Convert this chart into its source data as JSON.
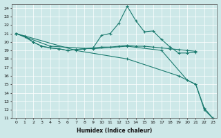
{
  "xlabel": "Humidex (Indice chaleur)",
  "ylabel": "",
  "background_color": "#cde8e8",
  "grid_color": "#ffffff",
  "line_color": "#1a7a6e",
  "xlim": [
    -0.5,
    23.5
  ],
  "ylim": [
    11,
    24.5
  ],
  "yticks": [
    11,
    12,
    13,
    14,
    15,
    16,
    17,
    18,
    19,
    20,
    21,
    22,
    23,
    24
  ],
  "xticks": [
    0,
    1,
    2,
    3,
    4,
    5,
    6,
    7,
    8,
    9,
    10,
    11,
    12,
    13,
    14,
    15,
    16,
    17,
    18,
    19,
    20,
    21,
    22,
    23
  ],
  "series": [
    {
      "x": [
        0,
        1,
        2,
        3,
        4,
        5,
        6,
        7,
        8,
        9,
        10,
        11,
        12,
        13,
        14,
        15,
        16,
        17,
        18,
        19,
        20,
        21
      ],
      "y": [
        21.0,
        20.7,
        20.0,
        19.5,
        19.3,
        19.2,
        19.0,
        19.1,
        19.2,
        19.3,
        20.8,
        21.0,
        22.2,
        24.2,
        22.5,
        21.2,
        21.3,
        20.3,
        19.4,
        18.7,
        18.7,
        18.8
      ],
      "marker": "+",
      "markersize": 2.5,
      "linestyle": "-",
      "linewidth": 0.8
    },
    {
      "x": [
        0,
        1,
        2,
        3,
        4,
        5,
        6,
        7,
        8,
        9,
        10,
        11,
        12,
        13,
        14,
        15,
        16,
        17,
        18,
        19,
        20,
        21
      ],
      "y": [
        21.0,
        20.6,
        20.0,
        19.5,
        19.3,
        19.2,
        19.0,
        19.1,
        19.2,
        19.3,
        19.4,
        19.4,
        19.5,
        19.6,
        19.5,
        19.5,
        19.4,
        19.3,
        19.2,
        19.1,
        19.0,
        18.9
      ],
      "marker": "+",
      "markersize": 2.5,
      "linestyle": "-",
      "linewidth": 0.8
    },
    {
      "x": [
        0,
        4,
        9,
        13,
        17,
        20,
        21,
        22,
        23
      ],
      "y": [
        21.0,
        19.5,
        19.2,
        19.5,
        19.0,
        15.5,
        15.0,
        12.2,
        11.0
      ],
      "marker": "+",
      "markersize": 2.5,
      "linestyle": "-",
      "linewidth": 0.8
    },
    {
      "x": [
        0,
        7,
        13,
        19,
        21,
        22,
        23
      ],
      "y": [
        21.0,
        19.0,
        18.0,
        16.0,
        15.0,
        12.0,
        11.0
      ],
      "marker": "+",
      "markersize": 2.5,
      "linestyle": "-",
      "linewidth": 0.8
    }
  ]
}
